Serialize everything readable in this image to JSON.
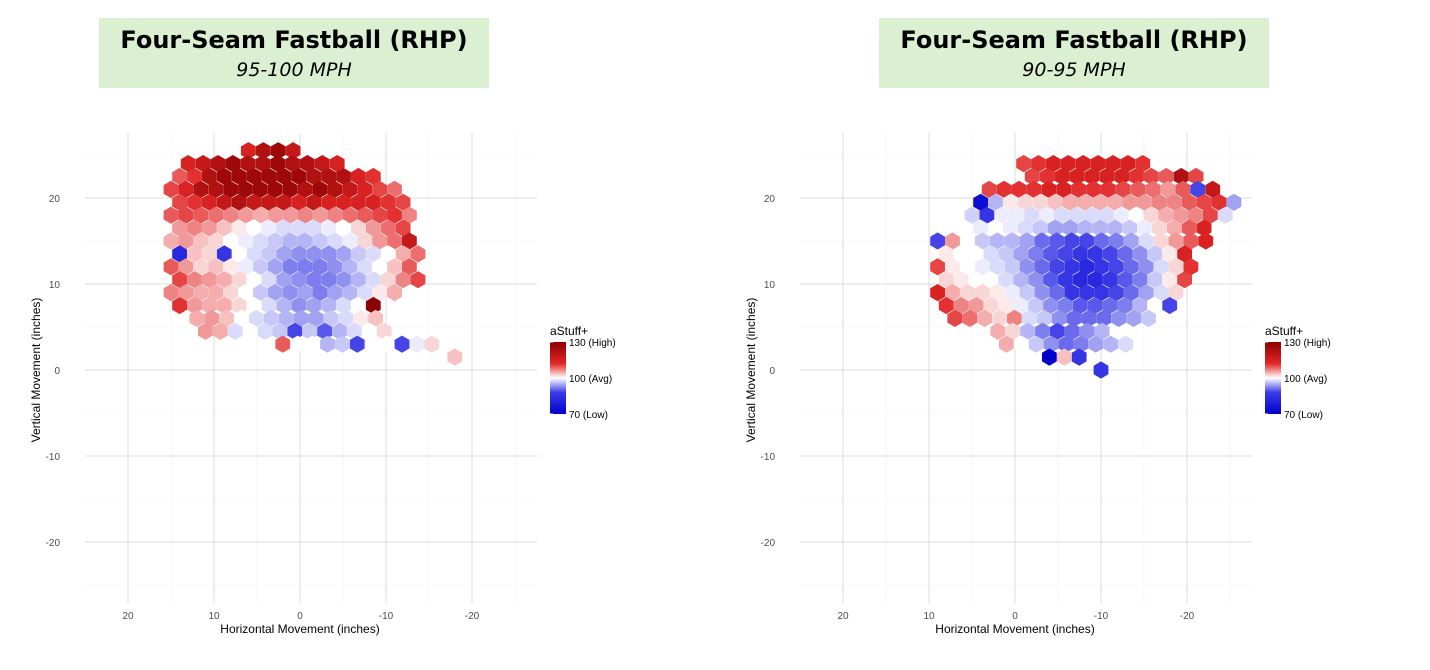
{
  "chart_data": [
    {
      "type": "hexbin",
      "title": "Four-Seam Fastball (RHP)",
      "subtitle": "95-100 MPH",
      "xlabel": "Horizontal Movement (inches)",
      "ylabel": "Vertical Movement (inches)",
      "xlim": [
        28,
        -27
      ],
      "ylim": [
        -28,
        27
      ],
      "x_ticks": [
        20,
        10,
        0,
        -10,
        -20
      ],
      "x_tick_labels": [
        "20",
        "10",
        "0",
        "-10",
        "-20"
      ],
      "y_ticks": [
        20,
        10,
        0,
        -10,
        -20
      ],
      "y_tick_labels": [
        "20",
        "10",
        "0",
        "-10",
        "-20"
      ],
      "legend": {
        "title": "aStuff+",
        "labels": [
          "130 (High)",
          "100 (Avg)",
          "70 (Low)"
        ],
        "values": [
          130,
          100,
          70
        ],
        "position": "right"
      },
      "colors": {
        "high": "#8b0000",
        "mid": "#ffffff",
        "low": "#0000cd"
      },
      "hex_rows": [
        {
          "y": 25.5,
          "x_start": 6,
          "values": [
            122,
            126,
            128,
            124
          ]
        },
        {
          "y": 24,
          "x_start": 13,
          "values": [
            122,
            124,
            126,
            128,
            126,
            126,
            128,
            126,
            126,
            124,
            122
          ]
        },
        {
          "y": 22.5,
          "x_start": 14,
          "values": [
            116,
            120,
            126,
            128,
            128,
            128,
            128,
            128,
            128,
            126,
            126,
            126,
            122,
            120
          ]
        },
        {
          "y": 21,
          "x_start": 15,
          "values": [
            118,
            122,
            126,
            126,
            128,
            128,
            128,
            128,
            128,
            126,
            128,
            126,
            124,
            122,
            118,
            114
          ]
        },
        {
          "y": 19.5,
          "x_start": 14,
          "values": [
            118,
            120,
            122,
            124,
            126,
            124,
            124,
            124,
            122,
            124,
            122,
            122,
            122,
            122,
            120,
            118
          ]
        },
        {
          "y": 18,
          "x_start": 15,
          "values": [
            116,
            118,
            116,
            114,
            112,
            110,
            108,
            110,
            110,
            112,
            110,
            112,
            114,
            116,
            118,
            120,
            112
          ]
        },
        {
          "y": 16.5,
          "x_start": 14,
          "values": [
            110,
            112,
            110,
            106,
            102,
            100,
            98,
            96,
            96,
            96,
            98,
            100,
            104,
            110,
            114,
            118
          ]
        },
        {
          "y": 15,
          "x_start": 15,
          "values": [
            108,
            110,
            106,
            104,
            100,
            98,
            96,
            94,
            92,
            92,
            94,
            96,
            98,
            104,
            110,
            114,
            124
          ]
        },
        {
          "y": 13.5,
          "x_start": 14,
          "values": [
            76,
            106,
            104,
            78,
            100,
            96,
            94,
            90,
            88,
            88,
            88,
            90,
            94,
            96,
            100,
            108,
            114
          ]
        },
        {
          "y": 12,
          "x_start": 15,
          "values": [
            116,
            110,
            104,
            106,
            102,
            98,
            94,
            90,
            86,
            86,
            86,
            88,
            92,
            96,
            100,
            106,
            116
          ]
        },
        {
          "y": 10.5,
          "x_start": 14,
          "values": [
            118,
            112,
            110,
            108,
            104,
            100,
            96,
            90,
            88,
            86,
            86,
            88,
            92,
            96,
            104,
            112,
            118
          ]
        },
        {
          "y": 9,
          "x_start": 15,
          "values": [
            112,
            110,
            108,
            108,
            104,
            100,
            94,
            90,
            88,
            90,
            86,
            90,
            92,
            96,
            102,
            108
          ]
        },
        {
          "y": 7.5,
          "x_start": 14,
          "values": [
            120,
            110,
            108,
            108,
            104,
            100,
            96,
            92,
            88,
            90,
            92,
            96,
            100,
            130
          ]
        },
        {
          "y": 6,
          "x_start": 12,
          "values": [
            108,
            110,
            106,
            100,
            96,
            94,
            92,
            90,
            90,
            94,
            96,
            102,
            106
          ]
        },
        {
          "y": 4.5,
          "x_start": 11,
          "values": [
            110,
            108,
            96,
            100,
            96,
            94,
            80,
            94,
            82,
            92,
            96,
            100,
            104
          ]
        },
        {
          "y": 3,
          "x_start": 2,
          "values": [
            116,
            100,
            100,
            92,
            94,
            80,
            100,
            100,
            80,
            98,
            104
          ]
        },
        {
          "y": 1.5,
          "x_start": -18,
          "values": [
            106
          ]
        }
      ]
    },
    {
      "type": "hexbin",
      "title": "Four-Seam Fastball (RHP)",
      "subtitle": "90-95 MPH",
      "xlabel": "Horizontal Movement (inches)",
      "ylabel": "Vertical Movement (inches)",
      "xlim": [
        28,
        -27
      ],
      "ylim": [
        -28,
        27
      ],
      "x_ticks": [
        20,
        10,
        0,
        -10,
        -20
      ],
      "x_tick_labels": [
        "20",
        "10",
        "0",
        "-10",
        "-20"
      ],
      "y_ticks": [
        20,
        10,
        0,
        -10,
        -20
      ],
      "y_tick_labels": [
        "20",
        "10",
        "0",
        "-10",
        "-20"
      ],
      "legend": {
        "title": "aStuff+",
        "labels": [
          "130 (High)",
          "100 (Avg)",
          "70 (Low)"
        ],
        "values": [
          130,
          100,
          70
        ],
        "position": "right"
      },
      "colors": {
        "high": "#8b0000",
        "mid": "#ffffff",
        "low": "#0000cd"
      },
      "hex_rows": [
        {
          "y": 24,
          "x_start": -1,
          "values": [
            118,
            120,
            122,
            122,
            122,
            122,
            122,
            122,
            120
          ]
        },
        {
          "y": 22.5,
          "x_start": -2,
          "values": [
            118,
            120,
            122,
            122,
            122,
            122,
            122,
            120,
            118,
            116,
            126,
            118
          ]
        },
        {
          "y": 21,
          "x_start": 3,
          "values": [
            118,
            120,
            120,
            120,
            122,
            122,
            120,
            120,
            120,
            118,
            116,
            114,
            110,
            116,
            80,
            124
          ]
        },
        {
          "y": 19.5,
          "x_start": 4,
          "values": [
            72,
            92,
            102,
            104,
            104,
            106,
            108,
            108,
            108,
            108,
            110,
            110,
            112,
            112,
            116,
            118,
            120,
            90
          ]
        },
        {
          "y": 18,
          "x_start": 5,
          "values": [
            95,
            78,
            98,
            98,
            96,
            98,
            96,
            96,
            96,
            96,
            98,
            100,
            104,
            108,
            110,
            112,
            118,
            96
          ]
        },
        {
          "y": 16.5,
          "x_start": 4,
          "values": [
            98,
            100,
            98,
            96,
            94,
            90,
            90,
            92,
            92,
            92,
            94,
            98,
            104,
            108,
            116,
            122
          ]
        },
        {
          "y": 15,
          "x_start": 9,
          "values": [
            80,
            110,
            100,
            94,
            92,
            92,
            90,
            84,
            82,
            80,
            80,
            84,
            86,
            90,
            96,
            104,
            110,
            116,
            122
          ]
        },
        {
          "y": 13.5,
          "x_start": 8,
          "values": [
            102,
            100,
            100,
            96,
            94,
            90,
            86,
            82,
            80,
            78,
            78,
            80,
            84,
            88,
            94,
            102,
            122
          ]
        },
        {
          "y": 12,
          "x_start": 9,
          "values": [
            118,
            102,
            100,
            98,
            96,
            94,
            88,
            84,
            80,
            78,
            76,
            78,
            80,
            84,
            88,
            96,
            104,
            120
          ]
        },
        {
          "y": 10.5,
          "x_start": 8,
          "values": [
            104,
            102,
            100,
            100,
            96,
            92,
            88,
            82,
            78,
            76,
            76,
            78,
            82,
            86,
            94,
            102,
            118
          ]
        },
        {
          "y": 9,
          "x_start": 9,
          "values": [
            122,
            108,
            104,
            104,
            102,
            98,
            94,
            88,
            84,
            78,
            78,
            78,
            80,
            84,
            90,
            96,
            104
          ]
        },
        {
          "y": 7.5,
          "x_start": 8,
          "values": [
            120,
            112,
            110,
            104,
            102,
            98,
            94,
            88,
            86,
            82,
            82,
            84,
            86,
            92,
            100,
            80
          ]
        },
        {
          "y": 6,
          "x_start": 7,
          "values": [
            118,
            114,
            108,
            104,
            112,
            96,
            94,
            88,
            84,
            84,
            84,
            88,
            90,
            94
          ]
        },
        {
          "y": 4.5,
          "x_start": 2,
          "values": [
            108,
            104,
            92,
            86,
            80,
            84,
            88,
            92
          ]
        },
        {
          "y": 3,
          "x_start": 1,
          "values": [
            108,
            100,
            94,
            88,
            84,
            86,
            90,
            92,
            96
          ]
        },
        {
          "y": 1.5,
          "x_start": -4,
          "values": [
            70,
            106,
            78
          ]
        },
        {
          "y": 0,
          "x_start": -10,
          "values": [
            78
          ]
        }
      ]
    }
  ]
}
